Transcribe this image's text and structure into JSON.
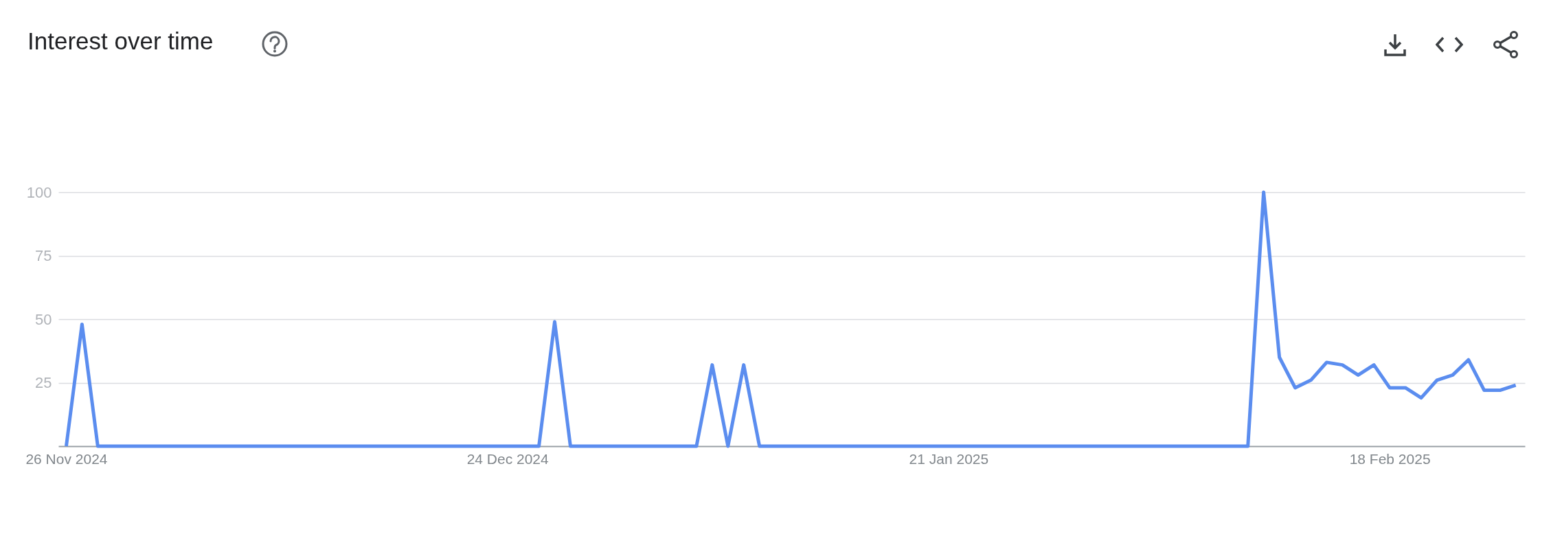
{
  "chart_data": {
    "type": "line",
    "title": "Interest over time",
    "x": [
      "2024-11-26",
      "2024-11-27",
      "2024-11-28",
      "2024-11-29",
      "2024-11-30",
      "2024-12-01",
      "2024-12-02",
      "2024-12-03",
      "2024-12-04",
      "2024-12-05",
      "2024-12-06",
      "2024-12-07",
      "2024-12-08",
      "2024-12-09",
      "2024-12-10",
      "2024-12-11",
      "2024-12-12",
      "2024-12-13",
      "2024-12-14",
      "2024-12-15",
      "2024-12-16",
      "2024-12-17",
      "2024-12-18",
      "2024-12-19",
      "2024-12-20",
      "2024-12-21",
      "2024-12-22",
      "2024-12-23",
      "2024-12-24",
      "2024-12-25",
      "2024-12-26",
      "2024-12-27",
      "2024-12-28",
      "2024-12-29",
      "2024-12-30",
      "2024-12-31",
      "2025-01-01",
      "2025-01-02",
      "2025-01-03",
      "2025-01-04",
      "2025-01-05",
      "2025-01-06",
      "2025-01-07",
      "2025-01-08",
      "2025-01-09",
      "2025-01-10",
      "2025-01-11",
      "2025-01-12",
      "2025-01-13",
      "2025-01-14",
      "2025-01-15",
      "2025-01-16",
      "2025-01-17",
      "2025-01-18",
      "2025-01-19",
      "2025-01-20",
      "2025-01-21",
      "2025-01-22",
      "2025-01-23",
      "2025-01-24",
      "2025-01-25",
      "2025-01-26",
      "2025-01-27",
      "2025-01-28",
      "2025-01-29",
      "2025-01-30",
      "2025-01-31",
      "2025-02-01",
      "2025-02-02",
      "2025-02-03",
      "2025-02-04",
      "2025-02-05",
      "2025-02-06",
      "2025-02-07",
      "2025-02-08",
      "2025-02-09",
      "2025-02-10",
      "2025-02-11",
      "2025-02-12",
      "2025-02-13",
      "2025-02-14",
      "2025-02-15",
      "2025-02-16",
      "2025-02-17",
      "2025-02-18",
      "2025-02-19",
      "2025-02-20",
      "2025-02-21",
      "2025-02-22",
      "2025-02-23",
      "2025-02-24",
      "2025-02-25",
      "2025-02-26"
    ],
    "series": [
      {
        "color": "#5b8def",
        "values": [
          0,
          48,
          0,
          0,
          0,
          0,
          0,
          0,
          0,
          0,
          0,
          0,
          0,
          0,
          0,
          0,
          0,
          0,
          0,
          0,
          0,
          0,
          0,
          0,
          0,
          0,
          0,
          0,
          0,
          0,
          0,
          49,
          0,
          0,
          0,
          0,
          0,
          0,
          0,
          0,
          0,
          32,
          0,
          32,
          0,
          0,
          0,
          0,
          0,
          0,
          0,
          0,
          0,
          0,
          0,
          0,
          0,
          0,
          0,
          0,
          0,
          0,
          0,
          0,
          0,
          0,
          0,
          0,
          0,
          0,
          0,
          0,
          0,
          0,
          0,
          0,
          100,
          35,
          23,
          26,
          33,
          32,
          28,
          32,
          23,
          23,
          19,
          26,
          28,
          34,
          22,
          22,
          24
        ]
      }
    ],
    "xlim": [
      "2024-11-25T12:00",
      "2025-02-26T14:00"
    ],
    "xticks": [
      {
        "value": "2024-11-26",
        "label": "26 Nov 2024"
      },
      {
        "value": "2024-12-24",
        "label": "24 Dec 2024"
      },
      {
        "value": "2025-01-21",
        "label": "21 Jan 2025"
      },
      {
        "value": "2025-02-18",
        "label": "18 Feb 2025"
      }
    ],
    "ylim": [
      0,
      100
    ],
    "yticks": [
      25,
      50,
      75,
      100
    ],
    "grid": "y"
  }
}
